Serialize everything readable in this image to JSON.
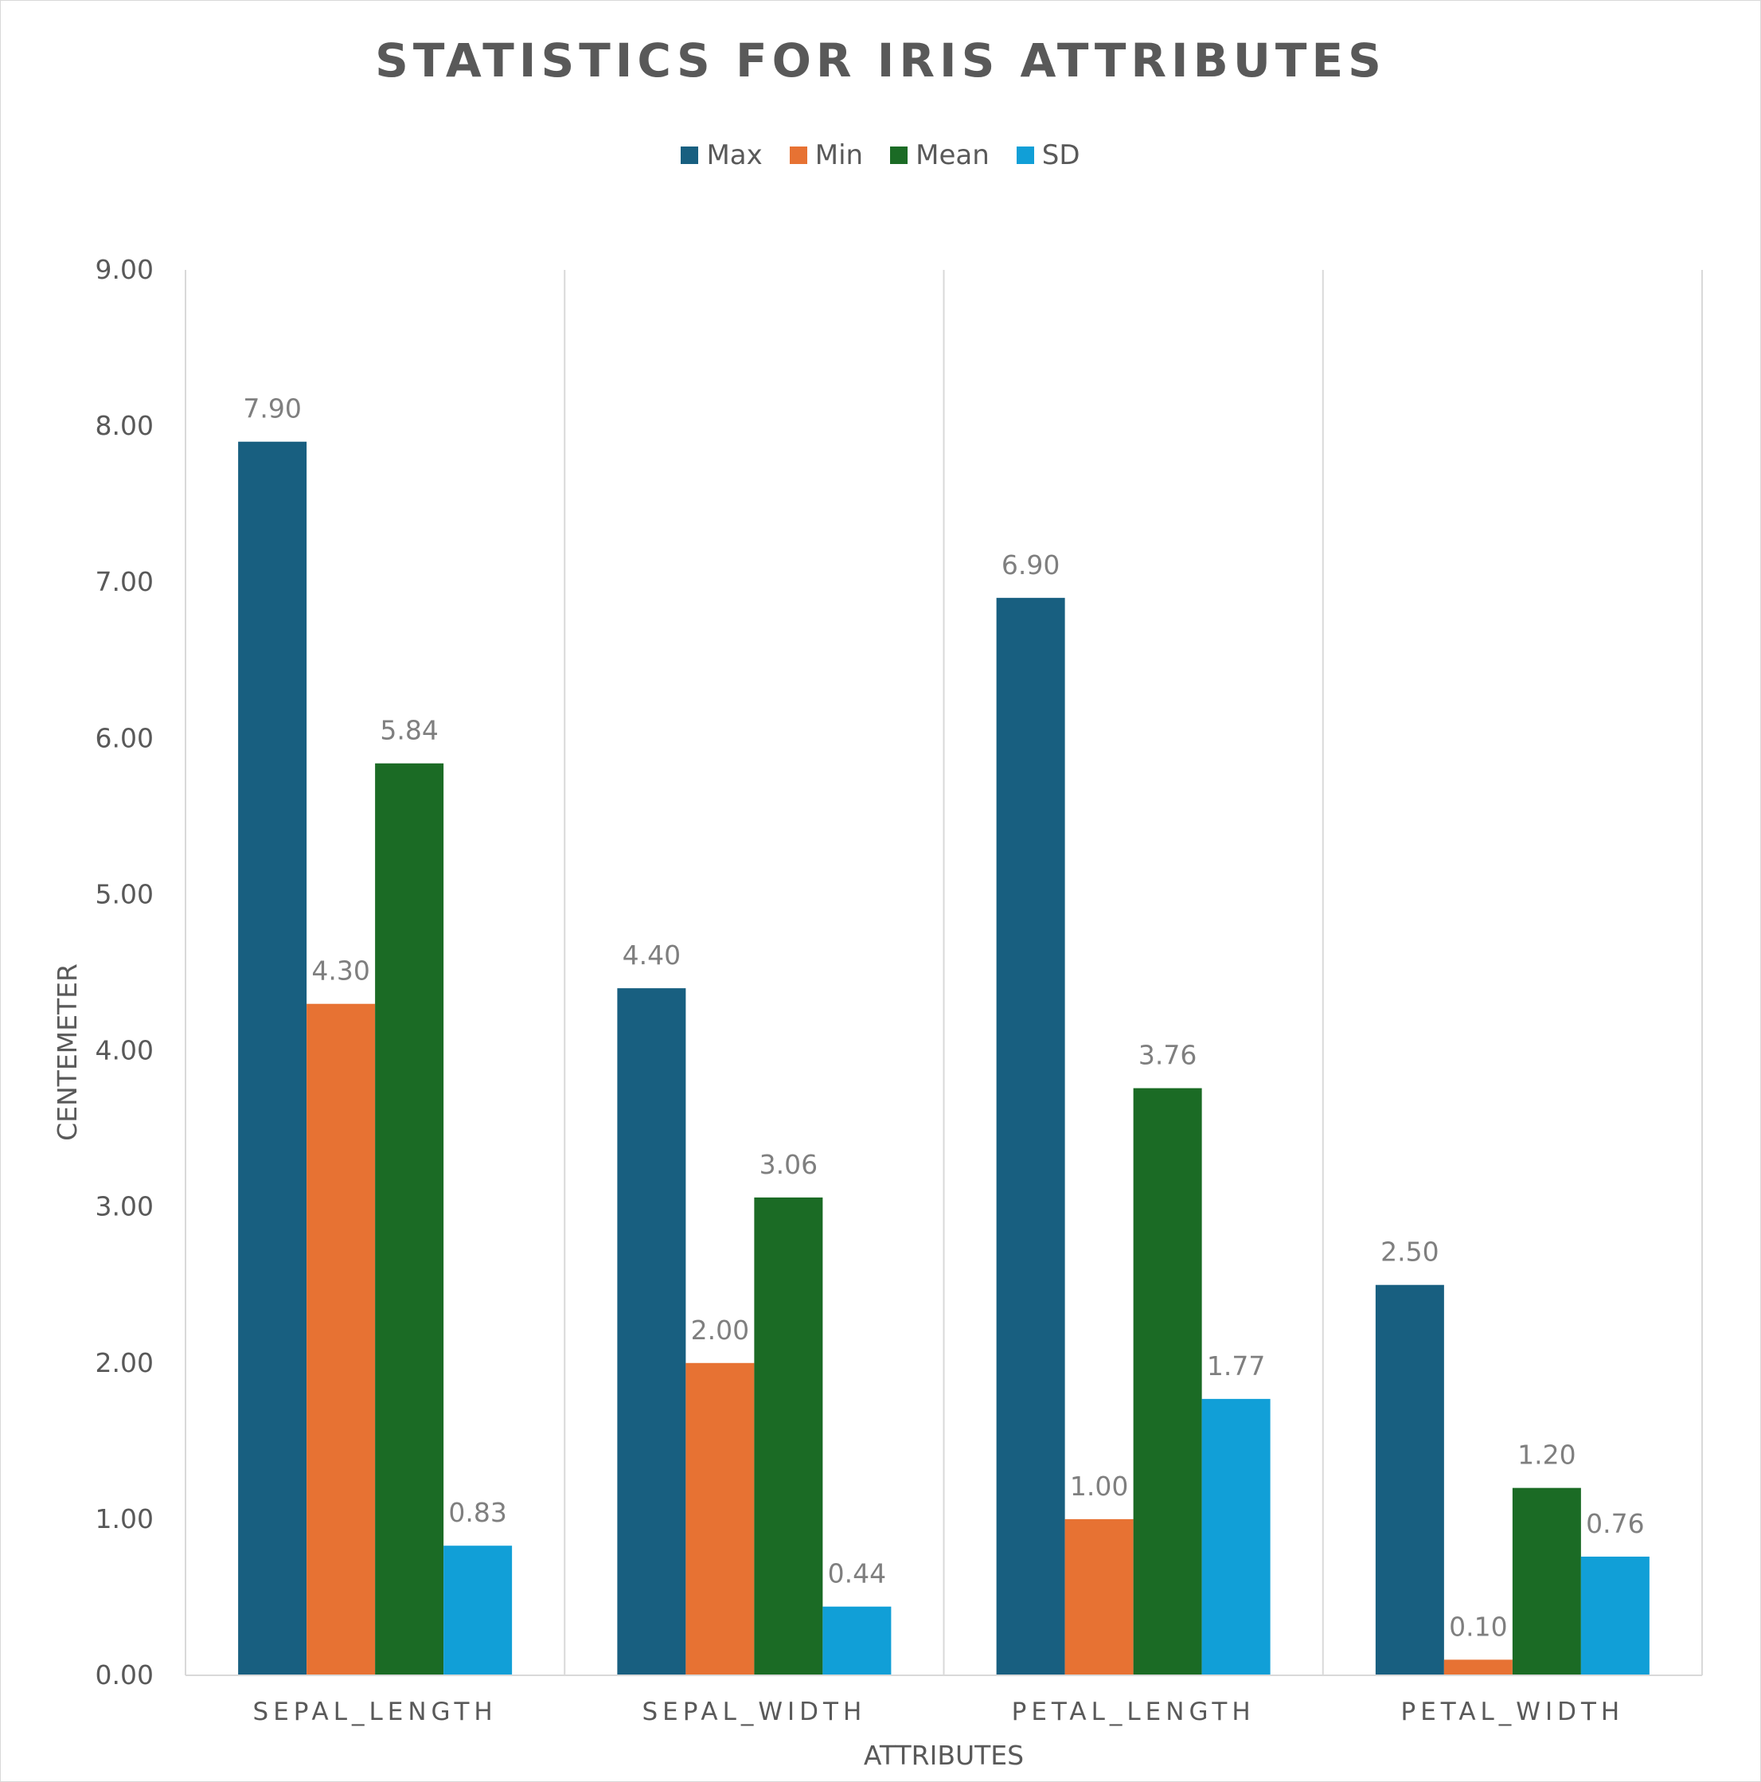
{
  "chart_data": {
    "type": "bar",
    "title": "STATISTICS FOR IRIS ATTRIBUTES",
    "xlabel": "ATTRIBUTES",
    "ylabel": "CENTEMETER",
    "categories": [
      "SEPAL_LENGTH",
      "SEPAL_WIDTH",
      "PETAL_LENGTH",
      "PETAL_WIDTH"
    ],
    "series": [
      {
        "name": "Max",
        "color": "#185f80",
        "values": [
          7.9,
          4.4,
          6.9,
          2.5
        ]
      },
      {
        "name": "Min",
        "color": "#e77233",
        "values": [
          4.3,
          2.0,
          1.0,
          0.1
        ]
      },
      {
        "name": "Mean",
        "color": "#1b6b25",
        "values": [
          5.84,
          3.06,
          3.76,
          1.2
        ]
      },
      {
        "name": "SD",
        "color": "#119fd7",
        "values": [
          0.83,
          0.44,
          1.77,
          0.76
        ]
      }
    ],
    "ylim": [
      0,
      9
    ],
    "yticks": [
      "0.00",
      "1.00",
      "2.00",
      "3.00",
      "4.00",
      "5.00",
      "6.00",
      "7.00",
      "8.00",
      "9.00"
    ],
    "grid": "vertical category separators",
    "legend_position": "top-center",
    "data_labels": true
  }
}
